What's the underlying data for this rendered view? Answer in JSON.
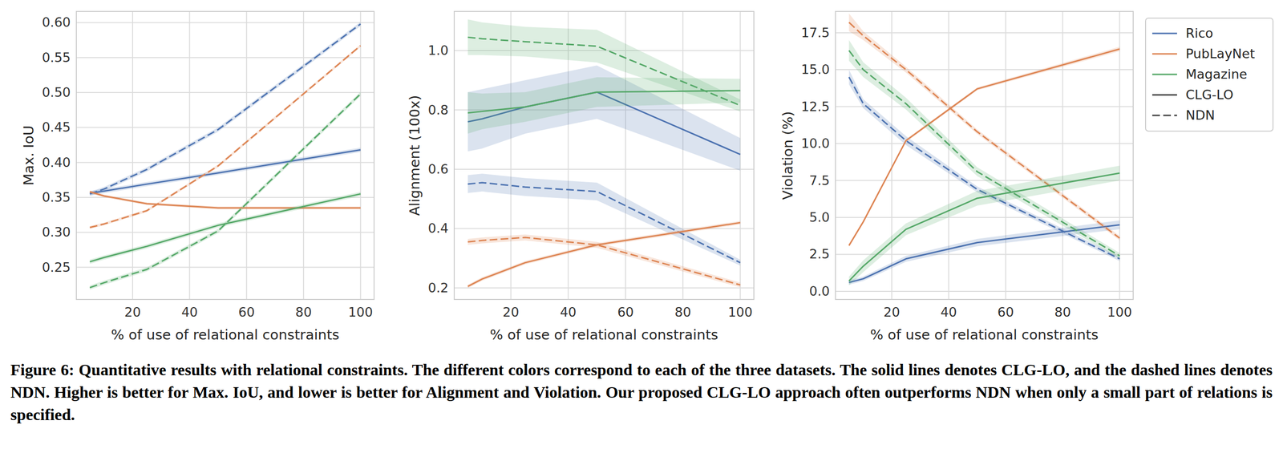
{
  "chart_data": [
    {
      "type": "line",
      "xlabel": "% of use of relational constraints",
      "ylabel": "Max. IoU",
      "x": [
        5,
        10,
        25,
        50,
        100
      ],
      "xlim": [
        0.25,
        104.75
      ],
      "xticks": [
        20,
        40,
        60,
        80,
        100
      ],
      "ylim": [
        0.204,
        0.616
      ],
      "yticks": [
        0.25,
        {
          "value": 0.3,
          "label": "0.30"
        },
        0.35,
        {
          "value": 0.4,
          "label": "0.40"
        },
        0.45,
        {
          "value": 0.5,
          "label": "0.50"
        },
        0.55,
        {
          "value": 0.6,
          "label": "0.60"
        }
      ],
      "grid": true,
      "series": [
        {
          "name": "Rico",
          "color": "#4c72b0",
          "line_style": "solid",
          "values": [
            0.356,
            0.359,
            0.369,
            0.385,
            0.418
          ],
          "errors": [
            0.003,
            0.003,
            0.003,
            0.003,
            0.003
          ]
        },
        {
          "name": "Rico",
          "color": "#4c72b0",
          "line_style": "dashed",
          "values": [
            0.355,
            0.362,
            0.39,
            0.447,
            0.598
          ],
          "errors": [
            0.003,
            0.003,
            0.003,
            0.003,
            0.003
          ]
        },
        {
          "name": "PubLayNet",
          "color": "#dd8452",
          "line_style": "solid",
          "values": [
            0.358,
            0.352,
            0.341,
            0.335,
            0.335
          ],
          "errors": [
            0.002,
            0.002,
            0.002,
            0.002,
            0.002
          ]
        },
        {
          "name": "PubLayNet",
          "color": "#dd8452",
          "line_style": "dashed",
          "values": [
            0.307,
            0.312,
            0.331,
            0.395,
            0.567
          ],
          "errors": [
            0.002,
            0.002,
            0.002,
            0.002,
            0.002
          ]
        },
        {
          "name": "Magazine",
          "color": "#55a868",
          "line_style": "solid",
          "values": [
            0.258,
            0.264,
            0.28,
            0.31,
            0.355
          ],
          "errors": [
            0.003,
            0.003,
            0.003,
            0.003,
            0.003
          ]
        },
        {
          "name": "Magazine",
          "color": "#55a868",
          "line_style": "dashed",
          "values": [
            0.221,
            0.228,
            0.247,
            0.302,
            0.498
          ],
          "errors": [
            0.003,
            0.003,
            0.003,
            0.003,
            0.003
          ]
        }
      ]
    },
    {
      "type": "line",
      "xlabel": "% of use of relational constraints",
      "ylabel": "Alignment (100x)",
      "x": [
        5,
        10,
        25,
        50,
        100
      ],
      "xlim": [
        0.25,
        104.75
      ],
      "xticks": [
        20,
        40,
        60,
        80,
        100
      ],
      "ylim": [
        0.161,
        1.132
      ],
      "yticks": [
        0.2,
        0.4,
        0.6,
        0.8,
        {
          "value": 1.0,
          "label": "1.0"
        }
      ],
      "grid": true,
      "series": [
        {
          "name": "Rico",
          "color": "#4c72b0",
          "line_style": "solid",
          "values": [
            0.76,
            0.77,
            0.81,
            0.86,
            0.65
          ],
          "errors": [
            0.1,
            0.1,
            0.09,
            0.09,
            0.055
          ]
        },
        {
          "name": "Rico",
          "color": "#4c72b0",
          "line_style": "dashed",
          "values": [
            0.55,
            0.555,
            0.54,
            0.525,
            0.285
          ],
          "errors": [
            0.03,
            0.03,
            0.03,
            0.03,
            0.01
          ]
        },
        {
          "name": "PubLayNet",
          "color": "#dd8452",
          "line_style": "solid",
          "values": [
            0.205,
            0.23,
            0.285,
            0.345,
            0.42
          ],
          "errors": [
            0.006,
            0.006,
            0.006,
            0.006,
            0.006
          ]
        },
        {
          "name": "PubLayNet",
          "color": "#dd8452",
          "line_style": "dashed",
          "values": [
            0.355,
            0.36,
            0.37,
            0.345,
            0.21
          ],
          "errors": [
            0.01,
            0.01,
            0.01,
            0.01,
            0.008
          ]
        },
        {
          "name": "Magazine",
          "color": "#55a868",
          "line_style": "solid",
          "values": [
            0.79,
            0.795,
            0.81,
            0.86,
            0.865
          ],
          "errors": [
            0.07,
            0.06,
            0.05,
            0.05,
            0.04
          ]
        },
        {
          "name": "Magazine",
          "color": "#55a868",
          "line_style": "dashed",
          "values": [
            1.045,
            1.04,
            1.03,
            1.015,
            0.815
          ],
          "errors": [
            0.06,
            0.055,
            0.05,
            0.055,
            0.02
          ]
        }
      ]
    },
    {
      "type": "line",
      "xlabel": "% of use of relational constraints",
      "ylabel": "Violation (%)",
      "x": [
        5,
        10,
        25,
        50,
        100
      ],
      "xlim": [
        0.25,
        104.75
      ],
      "xticks": [
        20,
        40,
        60,
        80,
        100
      ],
      "ylim": [
        -0.55,
        18.94
      ],
      "yticks": [
        {
          "value": 0,
          "label": "0.0"
        },
        2.5,
        {
          "value": 5,
          "label": "5.0"
        },
        7.5,
        {
          "value": 10,
          "label": "10.0"
        },
        12.5,
        {
          "value": 15,
          "label": "15.0"
        },
        17.5
      ],
      "grid": true,
      "series": [
        {
          "name": "Rico",
          "color": "#4c72b0",
          "line_style": "solid",
          "values": [
            0.6,
            0.85,
            2.2,
            3.3,
            4.5
          ],
          "errors": [
            0.15,
            0.15,
            0.2,
            0.25,
            0.3
          ]
        },
        {
          "name": "Rico",
          "color": "#4c72b0",
          "line_style": "dashed",
          "values": [
            14.5,
            12.7,
            10.2,
            6.9,
            2.2
          ],
          "errors": [
            0.5,
            0.3,
            0.3,
            0.2,
            0.15
          ]
        },
        {
          "name": "PubLayNet",
          "color": "#dd8452",
          "line_style": "solid",
          "values": [
            3.1,
            4.7,
            10.2,
            13.7,
            16.4
          ],
          "errors": [
            0.1,
            0.1,
            0.1,
            0.1,
            0.15
          ]
        },
        {
          "name": "PubLayNet",
          "color": "#dd8452",
          "line_style": "dashed",
          "values": [
            18.2,
            17.3,
            15.0,
            10.8,
            3.6
          ],
          "errors": [
            0.6,
            0.3,
            0.2,
            0.15,
            0.15
          ]
        },
        {
          "name": "Magazine",
          "color": "#55a868",
          "line_style": "solid",
          "values": [
            0.7,
            1.7,
            4.2,
            6.3,
            8.0
          ],
          "errors": [
            0.3,
            0.4,
            0.4,
            0.5,
            0.5
          ]
        },
        {
          "name": "Magazine",
          "color": "#55a868",
          "line_style": "dashed",
          "values": [
            16.3,
            15.0,
            12.7,
            8.1,
            2.4
          ],
          "errors": [
            0.7,
            0.5,
            0.4,
            0.3,
            0.2
          ]
        }
      ]
    }
  ],
  "legend_entries": [
    {
      "label": "Rico",
      "color": "#4c72b0",
      "line_style": "solid"
    },
    {
      "label": "PubLayNet",
      "color": "#dd8452",
      "line_style": "solid"
    },
    {
      "label": "Magazine",
      "color": "#55a868",
      "line_style": "solid"
    },
    {
      "label": "CLG-LO",
      "color": "#404040",
      "line_style": "solid"
    },
    {
      "label": "NDN",
      "color": "#404040",
      "line_style": "dashed"
    }
  ],
  "caption": "Figure 6: Quantitative results with relational constraints. The different colors correspond to each of the three datasets. The solid lines denotes CLG-LO, and the dashed lines denotes NDN. Higher is better for Max. IoU, and lower is better for Alignment and Violation. Our proposed CLG-LO approach often outperforms NDN when only a small part of relations is specified."
}
